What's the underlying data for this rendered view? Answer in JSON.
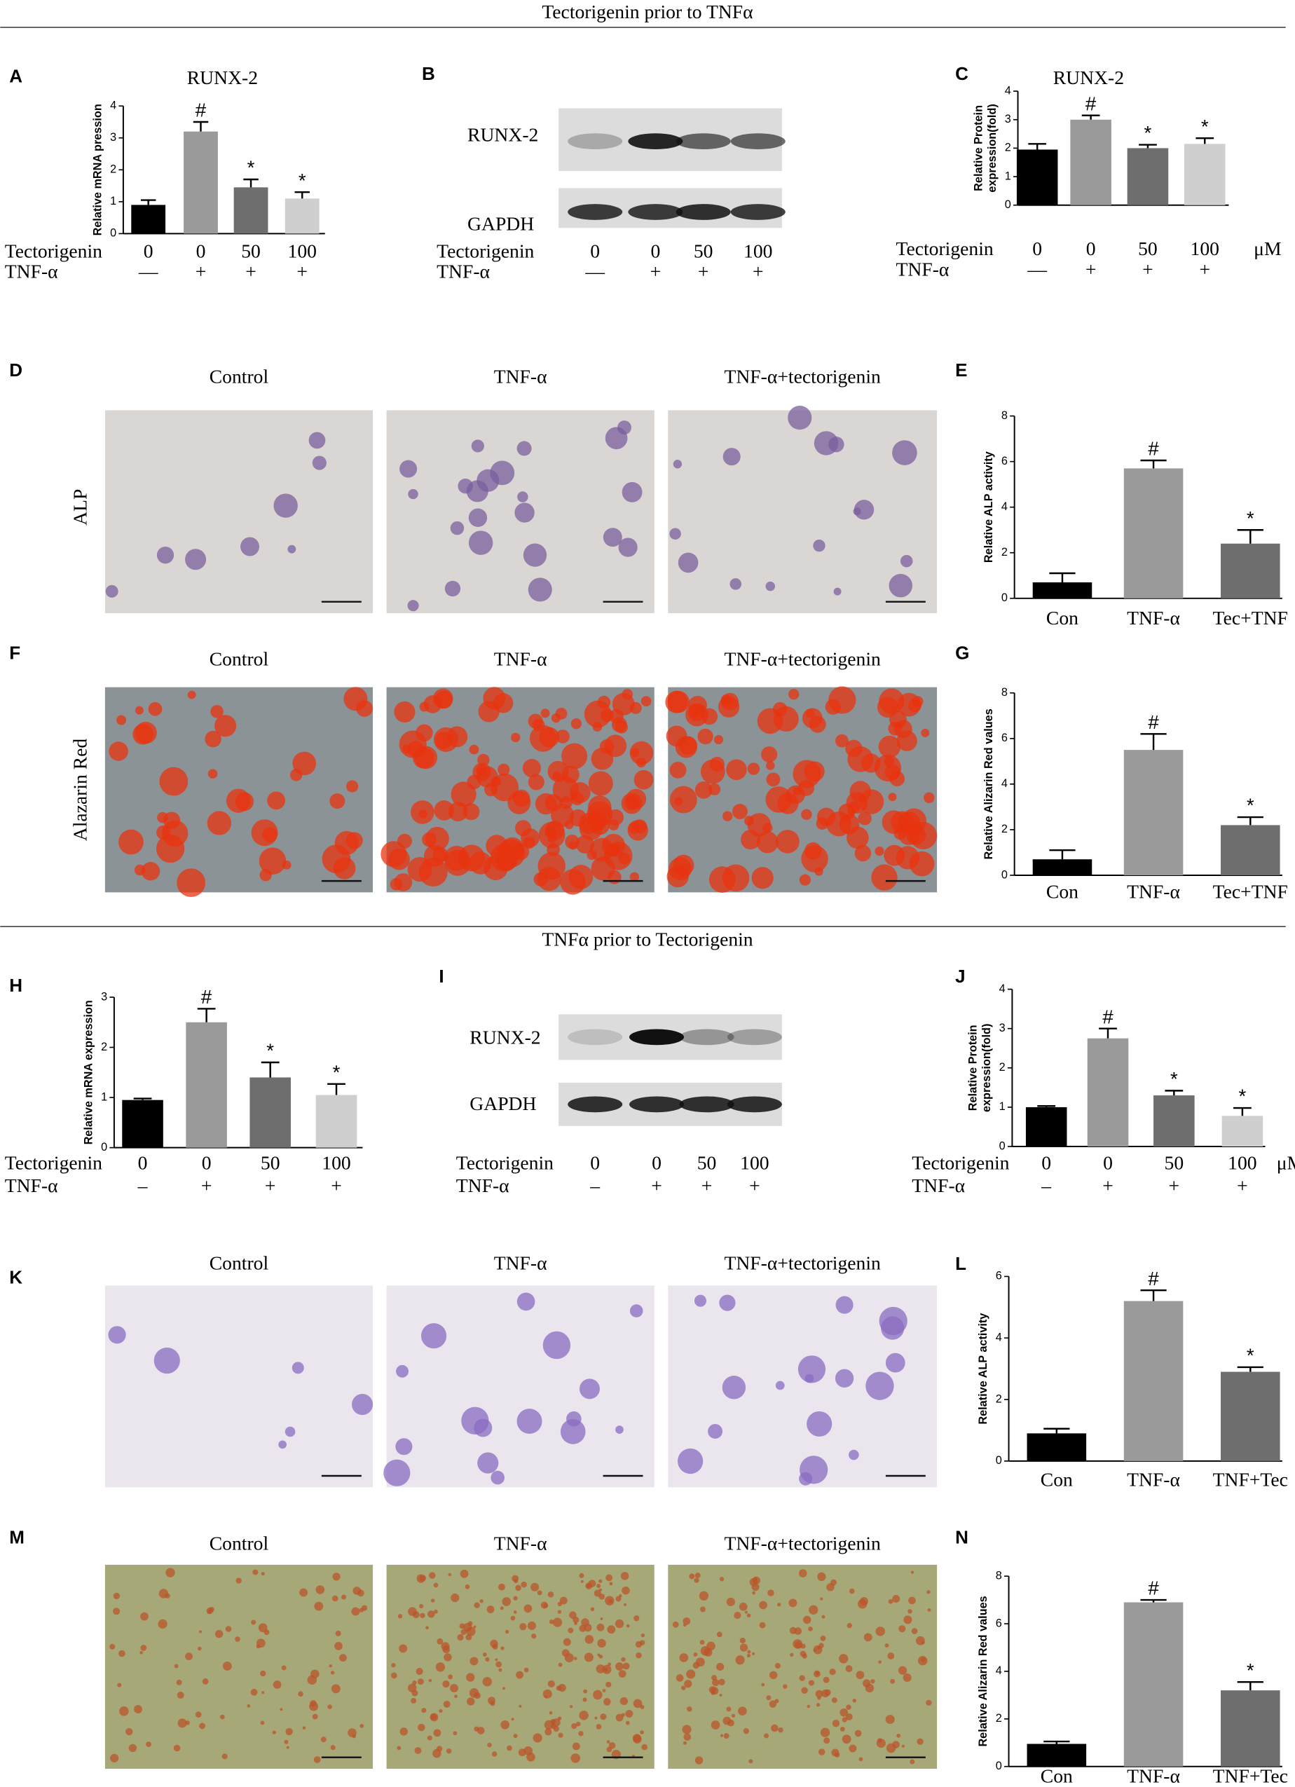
{
  "sections": [
    "Tectorigenin prior to TNFα",
    "TNFα prior to Tectorigenin"
  ],
  "panel_letters": [
    "A",
    "B",
    "C",
    "D",
    "E",
    "F",
    "G",
    "H",
    "I",
    "J",
    "K",
    "L",
    "M",
    "N"
  ],
  "chart_data": [
    {
      "type": "bar",
      "title": "RUNX-2",
      "y_label": "Relative mRNA pression",
      "categories": [
        "0",
        "0",
        "50",
        "100"
      ],
      "values": [
        0.9,
        3.2,
        1.45,
        1.1
      ],
      "errors": [
        0.15,
        0.3,
        0.25,
        0.2
      ],
      "annotations": [
        null,
        "#",
        "*",
        "*"
      ],
      "colors": [
        "#000000",
        "#9a9a9a",
        "#6e6e6e",
        "#cfcfcf"
      ],
      "ylim": [
        0,
        4
      ],
      "yticks": [
        0,
        1,
        2,
        3,
        4
      ],
      "row_labels": [
        "Tectorigenin",
        "TNF-α"
      ],
      "signs": [
        "—",
        "+",
        "+",
        "+"
      ]
    },
    {
      "type": "bar",
      "title": "RUNX-2",
      "y_label": [
        "Relative Protein",
        "expression(fold)"
      ],
      "categories": [
        "0",
        "0",
        "50",
        "100"
      ],
      "values": [
        1.95,
        3.0,
        2.0,
        2.15
      ],
      "errors": [
        0.2,
        0.15,
        0.12,
        0.2
      ],
      "annotations": [
        null,
        "#",
        "*",
        "*"
      ],
      "colors": [
        "#000000",
        "#9a9a9a",
        "#6e6e6e",
        "#cfcfcf"
      ],
      "ylim": [
        0,
        4
      ],
      "yticks": [
        0,
        1,
        2,
        3,
        4
      ],
      "row_labels": [
        "Tectorigenin",
        "TNF-α"
      ],
      "signs": [
        "—",
        "+",
        "+",
        "+"
      ],
      "unit": "μM"
    },
    {
      "type": "bar",
      "y_label": "Relative ALP activity",
      "categories": [
        "Con",
        "TNF-α",
        "Tec+TNF"
      ],
      "values": [
        0.7,
        5.7,
        2.4
      ],
      "errors": [
        0.4,
        0.35,
        0.6
      ],
      "annotations": [
        null,
        "#",
        "*"
      ],
      "colors": [
        "#000000",
        "#9a9a9a",
        "#6e6e6e"
      ],
      "ylim": [
        0,
        8
      ],
      "yticks": [
        0,
        2,
        4,
        6,
        8
      ]
    },
    {
      "type": "bar",
      "y_label": "Relative Alizarin Red values",
      "categories": [
        "Con",
        "TNF-α",
        "Tec+TNF"
      ],
      "values": [
        0.7,
        5.5,
        2.2
      ],
      "errors": [
        0.4,
        0.7,
        0.35
      ],
      "annotations": [
        null,
        "#",
        "*"
      ],
      "colors": [
        "#000000",
        "#9a9a9a",
        "#6e6e6e"
      ],
      "ylim": [
        0,
        8
      ],
      "yticks": [
        0,
        2,
        4,
        6,
        8
      ]
    },
    {
      "type": "bar",
      "y_label": "Relative mRNA expression",
      "categories": [
        "0",
        "0",
        "50",
        "100"
      ],
      "values": [
        0.95,
        2.5,
        1.4,
        1.05
      ],
      "errors": [
        0.03,
        0.27,
        0.3,
        0.22
      ],
      "annotations": [
        null,
        "#",
        "*",
        "*"
      ],
      "colors": [
        "#000000",
        "#9a9a9a",
        "#6e6e6e",
        "#cfcfcf"
      ],
      "ylim": [
        0,
        3
      ],
      "yticks": [
        0,
        1,
        2,
        3
      ],
      "row_labels": [
        "Tectorigenin",
        "TNF-α"
      ],
      "signs": [
        "–",
        "+",
        "+",
        "+"
      ]
    },
    {
      "type": "bar",
      "y_label": [
        "Relative Protein",
        "expression(fold)"
      ],
      "categories": [
        "0",
        "0",
        "50",
        "100"
      ],
      "values": [
        1.0,
        2.75,
        1.3,
        0.78
      ],
      "errors": [
        0.03,
        0.25,
        0.12,
        0.2
      ],
      "annotations": [
        null,
        "#",
        "*",
        "*"
      ],
      "colors": [
        "#000000",
        "#9a9a9a",
        "#6e6e6e",
        "#cfcfcf"
      ],
      "ylim": [
        0,
        4
      ],
      "yticks": [
        0,
        1,
        2,
        3,
        4
      ],
      "row_labels": [
        "Tectorigenin",
        "TNF-α"
      ],
      "signs": [
        "–",
        "+",
        "+",
        "+"
      ],
      "unit": "μM"
    },
    {
      "type": "bar",
      "y_label": "Relative ALP activity",
      "categories": [
        "Con",
        "TNF-α",
        "TNF+Tec"
      ],
      "values": [
        0.9,
        5.2,
        2.9
      ],
      "errors": [
        0.15,
        0.35,
        0.15
      ],
      "annotations": [
        null,
        "#",
        "*"
      ],
      "colors": [
        "#000000",
        "#9a9a9a",
        "#6e6e6e"
      ],
      "ylim": [
        0,
        6
      ],
      "yticks": [
        0,
        2,
        4,
        6
      ]
    },
    {
      "type": "bar",
      "y_label": "Relative Alizarin Red values",
      "categories": [
        "Con",
        "TNF-α",
        "TNF+Tec"
      ],
      "values": [
        0.95,
        6.9,
        3.2
      ],
      "errors": [
        0.1,
        0.1,
        0.35
      ],
      "annotations": [
        null,
        "#",
        "*"
      ],
      "colors": [
        "#000000",
        "#9a9a9a",
        "#6e6e6e"
      ],
      "ylim": [
        0,
        8
      ],
      "yticks": [
        0,
        2,
        4,
        6,
        8
      ]
    }
  ],
  "blots": [
    {
      "bands": [
        "RUNX-2",
        "GAPDH"
      ],
      "row_labels": [
        "Tectorigenin",
        "TNF-α"
      ],
      "doses": [
        "0",
        "0",
        "50",
        "100"
      ],
      "signs": [
        "—",
        "+",
        "+",
        "+"
      ]
    },
    {
      "bands": [
        "RUNX-2",
        "GAPDH"
      ],
      "row_labels": [
        "Tectorigenin",
        "TNF-α"
      ],
      "doses": [
        "0",
        "0",
        "50",
        "100"
      ],
      "signs": [
        "–",
        "+",
        "+",
        "+"
      ]
    }
  ],
  "micrographs": [
    {
      "columns": [
        "Control",
        "TNF-α",
        "TNF-α+tectorigenin"
      ],
      "row_label": "ALP"
    },
    {
      "columns": [
        "Control",
        "TNF-α",
        "TNF-α+tectorigenin"
      ],
      "row_label": "Alazarin Red"
    },
    {
      "columns": [
        "Control",
        "TNF-α",
        "TNF-α+tectorigenin"
      ]
    },
    {
      "columns": [
        "Control",
        "TNF-α",
        "TNF-α+tectorigenin"
      ]
    }
  ]
}
